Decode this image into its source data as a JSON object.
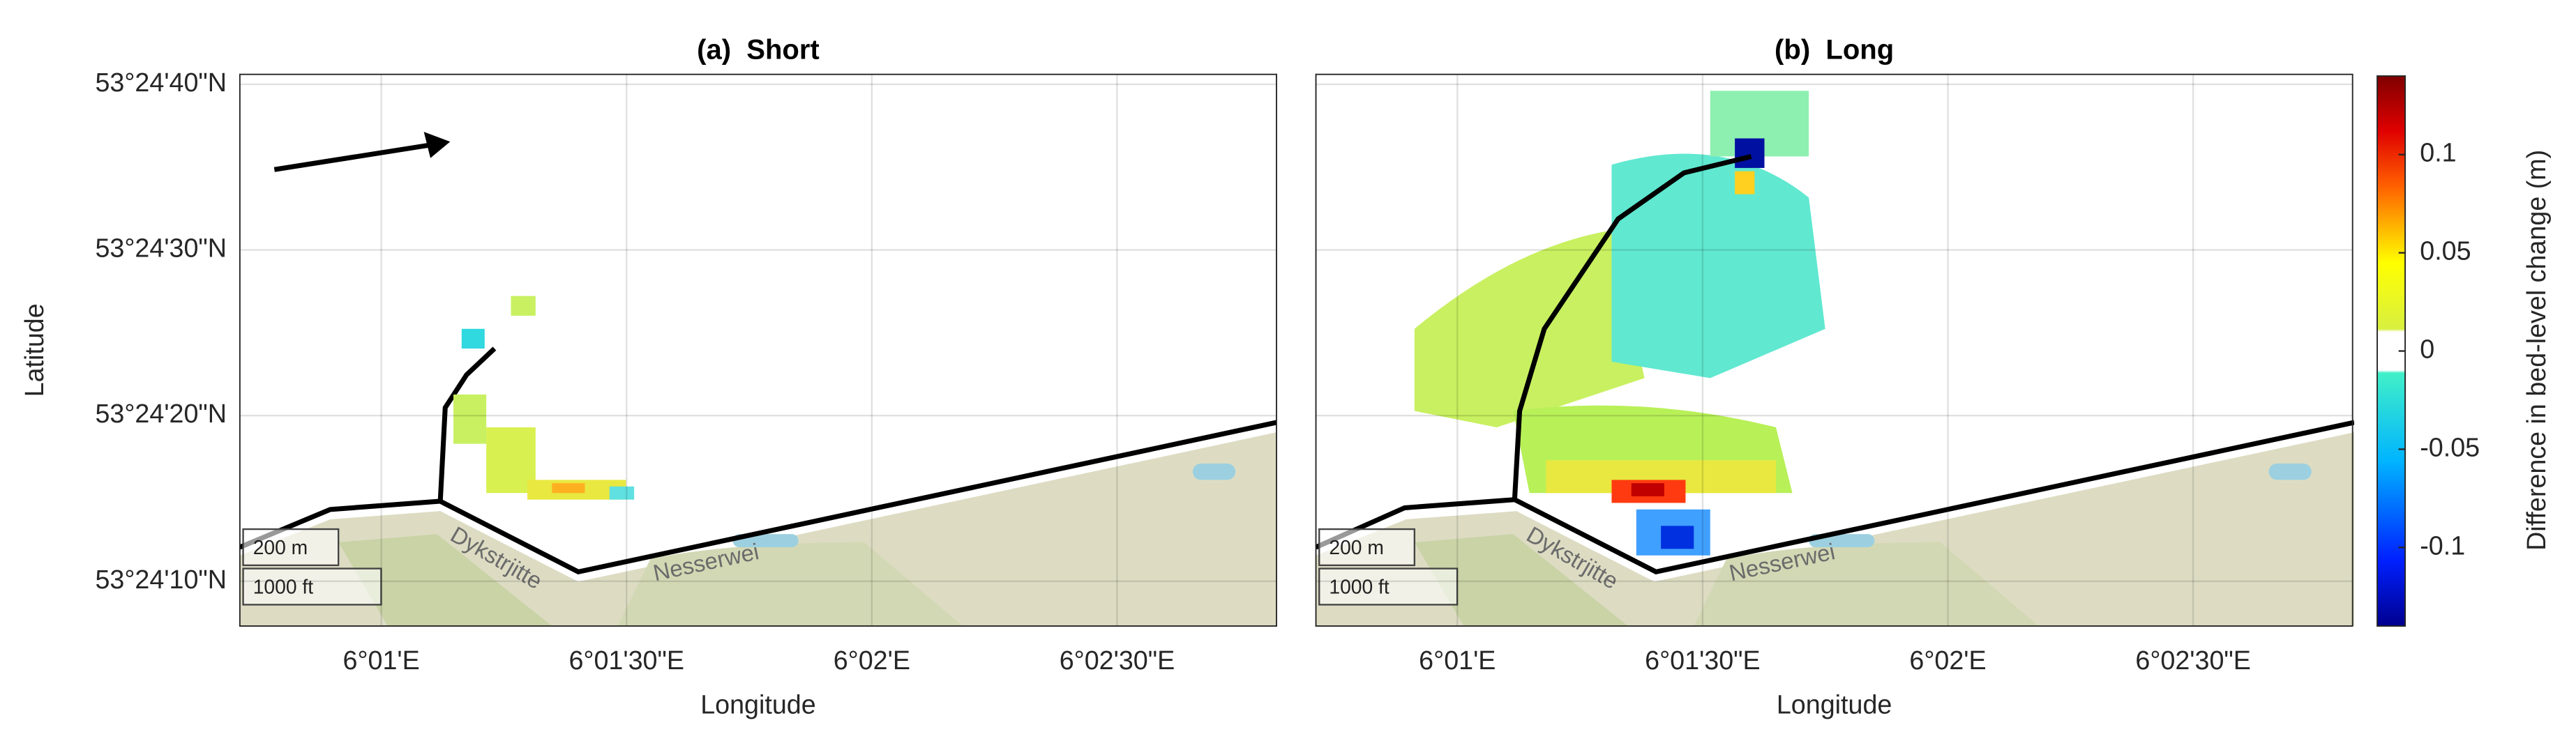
{
  "chart_data": [
    {
      "type": "heatmap",
      "title": "(a)  Short",
      "xlabel": "Longitude",
      "ylabel": "Latitude",
      "xlim": [
        42.7,
        169.5
      ],
      "ylim": [
        7.3,
        40.6
      ],
      "xticks": [
        {
          "value": 60,
          "label": "6°01'E"
        },
        {
          "value": 90,
          "label": "6°01'30\"E"
        },
        {
          "value": 120,
          "label": "6°02'E"
        },
        {
          "value": 150,
          "label": "6°02'30\"E"
        }
      ],
      "yticks": [
        {
          "value": 10,
          "label": "53°24'10\"N"
        },
        {
          "value": 20,
          "label": "53°24'20\"N"
        },
        {
          "value": 30,
          "label": "53°24'30\"N"
        },
        {
          "value": 40,
          "label": "53°24'40\"N"
        }
      ],
      "grid": true
    },
    {
      "type": "heatmap",
      "title": "(b)  Long",
      "xlabel": "Longitude",
      "xlim": [
        42.7,
        169.5
      ],
      "ylim": [
        7.3,
        40.6
      ],
      "xticks": [
        {
          "value": 60,
          "label": "6°01'E"
        },
        {
          "value": 90,
          "label": "6°01'30\"E"
        },
        {
          "value": 120,
          "label": "6°02'E"
        },
        {
          "value": 150,
          "label": "6°02'30\"E"
        }
      ],
      "grid": true,
      "colorbar": {
        "label": "Difference in bed-level change (m)",
        "clim": [
          -0.14,
          0.14
        ],
        "ticks": [
          -0.1,
          -0.05,
          0,
          0.05,
          0.1
        ]
      }
    }
  ],
  "map_labels": {
    "road_1": "Dykstrjitte",
    "road_2": "Nesserwei",
    "scale_m": "200 m",
    "scale_ft": "1000 ft"
  }
}
